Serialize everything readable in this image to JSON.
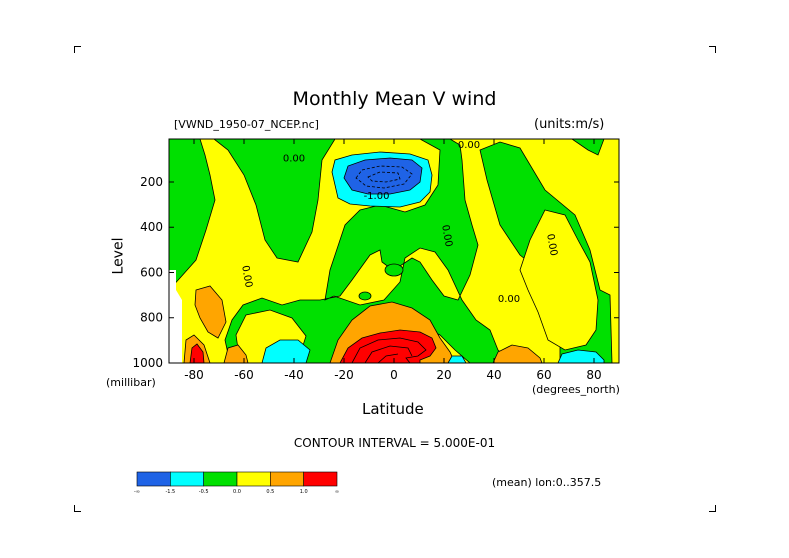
{
  "chart_data": {
    "type": "heatmap",
    "title": "Monthly Mean V wind",
    "dataset": "[VWND_1950-07_NCEP.nc]",
    "units": "(units:m/s)",
    "xlabel": "Latitude",
    "xunit": "(degrees_north)",
    "ylabel": "Level",
    "yunit": "(millibar)",
    "x_ticks": [
      "-80",
      "-60",
      "-40",
      "-20",
      "0",
      "20",
      "40",
      "60",
      "80"
    ],
    "y_ticks": [
      "200",
      "400",
      "600",
      "800",
      "1000"
    ],
    "xlim": [
      -90,
      90
    ],
    "ylim": [
      1000,
      10
    ],
    "y_inverted": true,
    "contour_interval_text": "CONTOUR INTERVAL = 5.000E-01",
    "mean_note": "(mean) lon:0..357.5",
    "contour_labels": [
      "0.00",
      "0.00",
      "-1.00",
      "0.00",
      "0.00",
      "0.00",
      "0.00"
    ],
    "colorbar": {
      "colors": [
        "#1f63e6",
        "#00ffff",
        "#00e000",
        "#ffff00",
        "#ffa500",
        "#ff0000"
      ],
      "labels": [
        "-∞",
        "-1.5",
        "-0.5",
        "0.0",
        "0.5",
        "1.0",
        "∞"
      ]
    },
    "grid": false,
    "legend_position": "bottom-left"
  }
}
